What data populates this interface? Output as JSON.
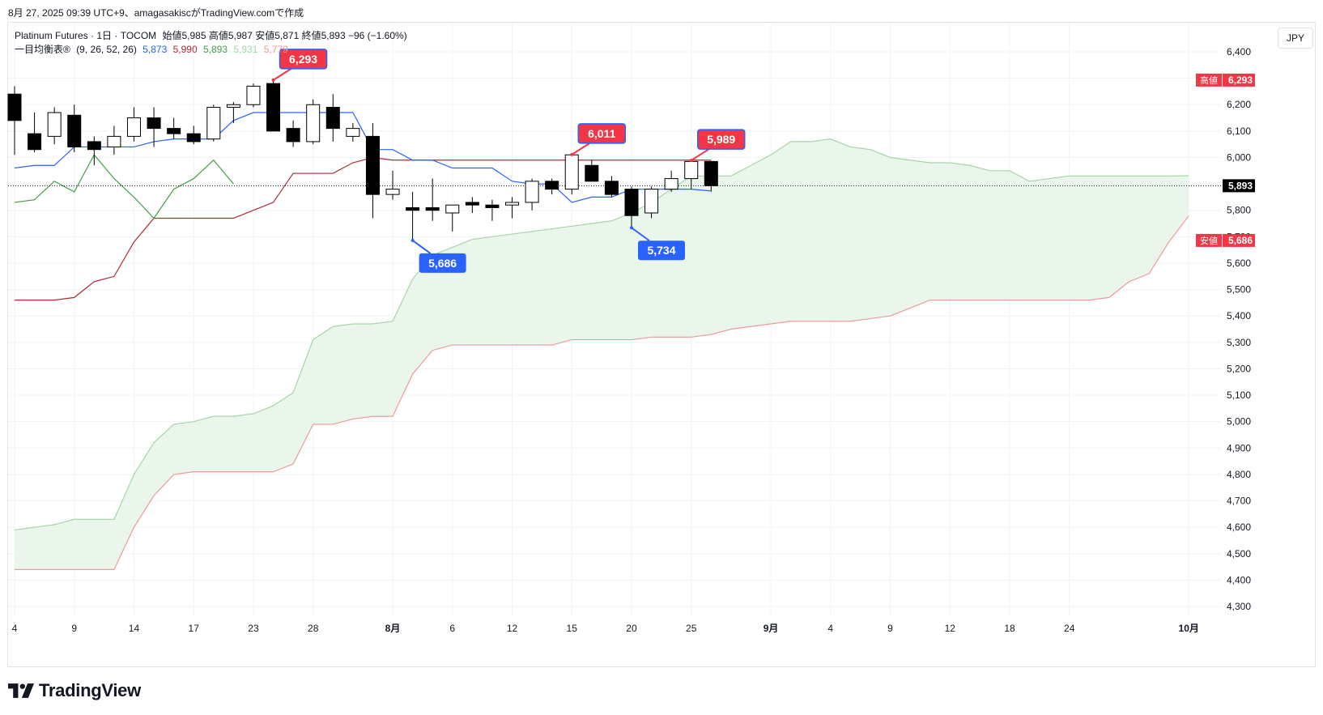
{
  "caption": "8月 27, 2025 09:39 UTC+9、amagasakiscがTradingView.comで作成",
  "legend": {
    "symbol": "Platinum Futures · 1日 · TOCOM",
    "ohlc": "始値5,985 高値5,987 安値5,871 終値5,893 −96 (−1.60%)",
    "indicator_name": "一目均衡表®",
    "indicator_params": "(9, 26, 52, 26)",
    "v_conversion": "5,873",
    "v_base": "5,990",
    "v_lagging": "5,893",
    "v_span_a": "5,931",
    "v_span_b": "5,779"
  },
  "currency": "JPY",
  "brand": "TradingView",
  "colors": {
    "up_fill": "#ffffff",
    "down_fill": "#000000",
    "conversion": "#2962ff",
    "base": "#b22833",
    "lagging": "#43a047",
    "span_a": "#a5d6a7",
    "span_b": "#ef9a9a",
    "cloud": "#e8f5e9",
    "high_label": "#f23645",
    "low_label": "#2962ff",
    "grid": "#f0f3fa",
    "axis_text": "#131722"
  },
  "chart_data": {
    "type": "candlestick",
    "y_ticks": [
      "4,300",
      "4,400",
      "4,500",
      "4,600",
      "4,700",
      "4,800",
      "4,900",
      "5,000",
      "5,100",
      "5,200",
      "5,300",
      "5,400",
      "5,500",
      "5,600",
      "5,700",
      "5,800",
      "5,900",
      "6,000",
      "6,100",
      "6,200",
      "6,300",
      "6,400"
    ],
    "ylim": [
      4300,
      6400
    ],
    "x_ticks": [
      {
        "label": "4",
        "x": 0
      },
      {
        "label": "9",
        "x": 3
      },
      {
        "label": "14",
        "x": 6
      },
      {
        "label": "17",
        "x": 9
      },
      {
        "label": "23",
        "x": 12
      },
      {
        "label": "28",
        "x": 15
      },
      {
        "label": "8月",
        "x": 19,
        "bold": true
      },
      {
        "label": "6",
        "x": 22
      },
      {
        "label": "12",
        "x": 25
      },
      {
        "label": "15",
        "x": 28
      },
      {
        "label": "20",
        "x": 31
      },
      {
        "label": "25",
        "x": 34
      },
      {
        "label": "9月",
        "x": 38,
        "bold": true
      },
      {
        "label": "4",
        "x": 41
      },
      {
        "label": "9",
        "x": 44
      },
      {
        "label": "12",
        "x": 47
      },
      {
        "label": "18",
        "x": 50
      },
      {
        "label": "24",
        "x": 53
      },
      {
        "label": "10月",
        "x": 59,
        "bold": true
      }
    ],
    "x_domain": [
      -0.3,
      60.3
    ],
    "candles": [
      {
        "o": 6240,
        "h": 6270,
        "l": 6010,
        "c": 6140
      },
      {
        "o": 6090,
        "h": 6170,
        "l": 6020,
        "c": 6030
      },
      {
        "o": 6080,
        "h": 6190,
        "l": 6050,
        "c": 6170
      },
      {
        "o": 6160,
        "h": 6200,
        "l": 6020,
        "c": 6040
      },
      {
        "o": 6060,
        "h": 6080,
        "l": 5970,
        "c": 6030
      },
      {
        "o": 6040,
        "h": 6120,
        "l": 6010,
        "c": 6080
      },
      {
        "o": 6080,
        "h": 6190,
        "l": 6060,
        "c": 6150
      },
      {
        "o": 6150,
        "h": 6190,
        "l": 6040,
        "c": 6110
      },
      {
        "o": 6110,
        "h": 6150,
        "l": 6070,
        "c": 6090
      },
      {
        "o": 6090,
        "h": 6120,
        "l": 6050,
        "c": 6060
      },
      {
        "o": 6070,
        "h": 6200,
        "l": 6060,
        "c": 6190
      },
      {
        "o": 6190,
        "h": 6210,
        "l": 6130,
        "c": 6200
      },
      {
        "o": 6200,
        "h": 6280,
        "l": 6190,
        "c": 6270
      },
      {
        "o": 6280,
        "h": 6293,
        "l": 6100,
        "c": 6100
      },
      {
        "o": 6110,
        "h": 6140,
        "l": 6040,
        "c": 6060
      },
      {
        "o": 6060,
        "h": 6220,
        "l": 6050,
        "c": 6200
      },
      {
        "o": 6190,
        "h": 6240,
        "l": 6060,
        "c": 6110
      },
      {
        "o": 6080,
        "h": 6130,
        "l": 6060,
        "c": 6110
      },
      {
        "o": 6080,
        "h": 6130,
        "l": 5770,
        "c": 5860
      },
      {
        "o": 5860,
        "h": 5950,
        "l": 5840,
        "c": 5880
      },
      {
        "o": 5810,
        "h": 5870,
        "l": 5686,
        "c": 5800
      },
      {
        "o": 5810,
        "h": 5920,
        "l": 5760,
        "c": 5800
      },
      {
        "o": 5790,
        "h": 5820,
        "l": 5720,
        "c": 5820
      },
      {
        "o": 5830,
        "h": 5850,
        "l": 5790,
        "c": 5820
      },
      {
        "o": 5820,
        "h": 5840,
        "l": 5760,
        "c": 5810
      },
      {
        "o": 5820,
        "h": 5850,
        "l": 5770,
        "c": 5830
      },
      {
        "o": 5830,
        "h": 5920,
        "l": 5800,
        "c": 5910
      },
      {
        "o": 5910,
        "h": 5920,
        "l": 5860,
        "c": 5880
      },
      {
        "o": 5880,
        "h": 6011,
        "l": 5860,
        "c": 6010
      },
      {
        "o": 5970,
        "h": 5990,
        "l": 5910,
        "c": 5910
      },
      {
        "o": 5910,
        "h": 5930,
        "l": 5850,
        "c": 5860
      },
      {
        "o": 5880,
        "h": 5890,
        "l": 5734,
        "c": 5780
      },
      {
        "o": 5790,
        "h": 5890,
        "l": 5770,
        "c": 5880
      },
      {
        "o": 5880,
        "h": 5950,
        "l": 5870,
        "c": 5920
      },
      {
        "o": 5920,
        "h": 5989,
        "l": 5880,
        "c": 5985
      },
      {
        "o": 5985,
        "h": 5987,
        "l": 5871,
        "c": 5893
      }
    ],
    "conversion": [
      [
        0,
        5960
      ],
      [
        1,
        5970
      ],
      [
        2,
        5970
      ],
      [
        3,
        6040
      ],
      [
        4,
        6040
      ],
      [
        5,
        6040
      ],
      [
        6,
        6040
      ],
      [
        7,
        6060
      ],
      [
        8,
        6070
      ],
      [
        9,
        6070
      ],
      [
        10,
        6070
      ],
      [
        11,
        6140
      ],
      [
        12,
        6170
      ],
      [
        13,
        6170
      ],
      [
        14,
        6170
      ],
      [
        15,
        6170
      ],
      [
        16,
        6170
      ],
      [
        17,
        6170
      ],
      [
        18,
        6030
      ],
      [
        19,
        6030
      ],
      [
        20,
        5990
      ],
      [
        21,
        5990
      ],
      [
        22,
        5960
      ],
      [
        23,
        5960
      ],
      [
        24,
        5960
      ],
      [
        25,
        5910
      ],
      [
        26,
        5900
      ],
      [
        27,
        5900
      ],
      [
        28,
        5830
      ],
      [
        29,
        5850
      ],
      [
        30,
        5850
      ],
      [
        31,
        5880
      ],
      [
        32,
        5880
      ],
      [
        33,
        5880
      ],
      [
        34,
        5880
      ],
      [
        35,
        5873
      ]
    ],
    "base": [
      [
        0,
        5460
      ],
      [
        1,
        5460
      ],
      [
        2,
        5460
      ],
      [
        3,
        5470
      ],
      [
        4,
        5530
      ],
      [
        5,
        5550
      ],
      [
        6,
        5680
      ],
      [
        7,
        5770
      ],
      [
        8,
        5770
      ],
      [
        9,
        5770
      ],
      [
        10,
        5770
      ],
      [
        11,
        5770
      ],
      [
        12,
        5800
      ],
      [
        13,
        5830
      ],
      [
        14,
        5940
      ],
      [
        15,
        5940
      ],
      [
        16,
        5940
      ],
      [
        17,
        5980
      ],
      [
        18,
        6000
      ],
      [
        19,
        5990
      ],
      [
        20,
        5990
      ],
      [
        21,
        5990
      ],
      [
        22,
        5990
      ],
      [
        23,
        5990
      ],
      [
        24,
        5990
      ],
      [
        25,
        5990
      ],
      [
        26,
        5990
      ],
      [
        27,
        5990
      ],
      [
        28,
        5990
      ],
      [
        29,
        5990
      ],
      [
        30,
        5990
      ],
      [
        31,
        5990
      ],
      [
        32,
        5990
      ],
      [
        33,
        5990
      ],
      [
        34,
        5990
      ],
      [
        35,
        5990
      ]
    ],
    "lagging": [
      [
        0,
        5830
      ],
      [
        1,
        5840
      ],
      [
        2,
        5910
      ],
      [
        3,
        5870
      ],
      [
        4,
        6010
      ],
      [
        5,
        5920
      ],
      [
        6,
        5850
      ],
      [
        7,
        5770
      ],
      [
        8,
        5880
      ],
      [
        9,
        5920
      ],
      [
        10,
        5990
      ],
      [
        11,
        5900
      ]
    ],
    "span_a": [
      [
        0,
        4590
      ],
      [
        1,
        4600
      ],
      [
        2,
        4610
      ],
      [
        3,
        4630
      ],
      [
        4,
        4630
      ],
      [
        5,
        4630
      ],
      [
        6,
        4800
      ],
      [
        7,
        4920
      ],
      [
        8,
        4990
      ],
      [
        9,
        5000
      ],
      [
        10,
        5020
      ],
      [
        11,
        5020
      ],
      [
        12,
        5030
      ],
      [
        13,
        5060
      ],
      [
        14,
        5110
      ],
      [
        15,
        5310
      ],
      [
        16,
        5360
      ],
      [
        17,
        5370
      ],
      [
        18,
        5370
      ],
      [
        19,
        5380
      ],
      [
        20,
        5540
      ],
      [
        21,
        5630
      ],
      [
        22,
        5660
      ],
      [
        23,
        5690
      ],
      [
        24,
        5700
      ],
      [
        25,
        5710
      ],
      [
        26,
        5720
      ],
      [
        27,
        5730
      ],
      [
        28,
        5740
      ],
      [
        29,
        5750
      ],
      [
        30,
        5760
      ],
      [
        31,
        5790
      ],
      [
        32,
        5830
      ],
      [
        33,
        5880
      ],
      [
        34,
        5930
      ],
      [
        35,
        5930
      ],
      [
        36,
        5930
      ],
      [
        37,
        5970
      ],
      [
        38,
        6010
      ],
      [
        39,
        6060
      ],
      [
        40,
        6060
      ],
      [
        41,
        6070
      ],
      [
        42,
        6040
      ],
      [
        43,
        6030
      ],
      [
        44,
        6000
      ],
      [
        45,
        5990
      ],
      [
        46,
        5980
      ],
      [
        47,
        5980
      ],
      [
        48,
        5970
      ],
      [
        49,
        5950
      ],
      [
        50,
        5950
      ],
      [
        51,
        5910
      ],
      [
        52,
        5920
      ],
      [
        53,
        5930
      ],
      [
        54,
        5930
      ],
      [
        55,
        5930
      ],
      [
        56,
        5930
      ],
      [
        57,
        5930
      ],
      [
        58,
        5930
      ],
      [
        59,
        5931
      ]
    ],
    "span_b": [
      [
        0,
        4440
      ],
      [
        1,
        4440
      ],
      [
        2,
        4440
      ],
      [
        3,
        4440
      ],
      [
        4,
        4440
      ],
      [
        5,
        4440
      ],
      [
        6,
        4600
      ],
      [
        7,
        4720
      ],
      [
        8,
        4800
      ],
      [
        9,
        4810
      ],
      [
        10,
        4810
      ],
      [
        11,
        4810
      ],
      [
        12,
        4810
      ],
      [
        13,
        4810
      ],
      [
        14,
        4840
      ],
      [
        15,
        4990
      ],
      [
        16,
        4990
      ],
      [
        17,
        5010
      ],
      [
        18,
        5020
      ],
      [
        19,
        5020
      ],
      [
        20,
        5180
      ],
      [
        21,
        5270
      ],
      [
        22,
        5290
      ],
      [
        23,
        5290
      ],
      [
        24,
        5290
      ],
      [
        25,
        5290
      ],
      [
        26,
        5290
      ],
      [
        27,
        5290
      ],
      [
        28,
        5310
      ],
      [
        29,
        5310
      ],
      [
        30,
        5310
      ],
      [
        31,
        5310
      ],
      [
        32,
        5320
      ],
      [
        33,
        5320
      ],
      [
        34,
        5320
      ],
      [
        35,
        5330
      ],
      [
        36,
        5350
      ],
      [
        37,
        5360
      ],
      [
        38,
        5370
      ],
      [
        39,
        5380
      ],
      [
        40,
        5380
      ],
      [
        41,
        5380
      ],
      [
        42,
        5380
      ],
      [
        43,
        5390
      ],
      [
        44,
        5400
      ],
      [
        45,
        5430
      ],
      [
        46,
        5460
      ],
      [
        47,
        5460
      ],
      [
        48,
        5460
      ],
      [
        49,
        5460
      ],
      [
        50,
        5460
      ],
      [
        51,
        5460
      ],
      [
        52,
        5460
      ],
      [
        53,
        5460
      ],
      [
        54,
        5460
      ],
      [
        55,
        5470
      ],
      [
        56,
        5530
      ],
      [
        57,
        5560
      ],
      [
        58,
        5680
      ],
      [
        59,
        5779
      ]
    ],
    "callouts": [
      {
        "kind": "high",
        "label": "6,293",
        "x": 13,
        "price": 6293
      },
      {
        "kind": "low",
        "label": "5,686",
        "x": 20,
        "price": 5686
      },
      {
        "kind": "high",
        "label": "6,011",
        "x": 28,
        "price": 6011
      },
      {
        "kind": "low",
        "label": "5,734",
        "x": 31,
        "price": 5734
      },
      {
        "kind": "high",
        "label": "5,989",
        "x": 34,
        "price": 5989
      }
    ],
    "price_badges": [
      {
        "kind": "high",
        "prefix": "高値",
        "value": "6,293",
        "price": 6293
      },
      {
        "kind": "last",
        "prefix": "",
        "value": "5,893",
        "price": 5893
      },
      {
        "kind": "low",
        "prefix": "安値",
        "value": "5,686",
        "price": 5686
      }
    ],
    "last_price": 5893
  }
}
